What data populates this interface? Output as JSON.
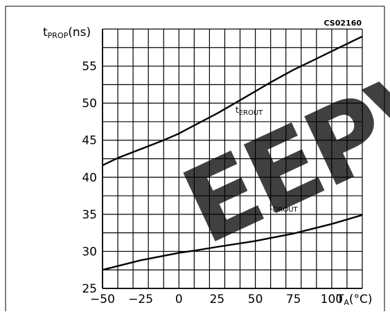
{
  "figure_id": "CS02160",
  "y_axis": {
    "symbol": "t",
    "subscript": "PROP",
    "unit": "(ns)"
  },
  "x_axis": {
    "symbol": "T",
    "subscript": "A",
    "unit": "(°C)"
  },
  "watermark": {
    "text": "EEPV",
    "color": "#e57373"
  },
  "chart_data": {
    "type": "line",
    "xlim": [
      -50,
      120
    ],
    "ylim": [
      25,
      60
    ],
    "x_ticks": [
      -50,
      -25,
      0,
      25,
      50,
      75,
      100
    ],
    "y_ticks": [
      25,
      30,
      35,
      40,
      45,
      50,
      55
    ],
    "x_tick_labels": [
      "−50",
      "−25",
      "0",
      "25",
      "50",
      "75",
      "100"
    ],
    "y_tick_labels": [
      "25",
      "30",
      "35",
      "40",
      "45",
      "50",
      "55"
    ],
    "grid": true,
    "series": [
      {
        "name_main": "t",
        "name_sub": "EROUT",
        "x": [
          -50,
          -40,
          -25,
          -10,
          0,
          10,
          25,
          40,
          50,
          60,
          75,
          90,
          100,
          110,
          120
        ],
        "y": [
          41.6,
          42.6,
          43.8,
          45.0,
          45.9,
          47.0,
          48.6,
          50.4,
          51.6,
          52.8,
          54.5,
          56.0,
          57.0,
          58.0,
          59.0
        ]
      },
      {
        "name_main": "t",
        "name_sub": "DROUT",
        "x": [
          -50,
          -25,
          0,
          10,
          25,
          50,
          75,
          100,
          120
        ],
        "y": [
          27.5,
          28.8,
          29.8,
          30.1,
          30.6,
          31.4,
          32.4,
          33.7,
          34.9
        ]
      }
    ]
  }
}
